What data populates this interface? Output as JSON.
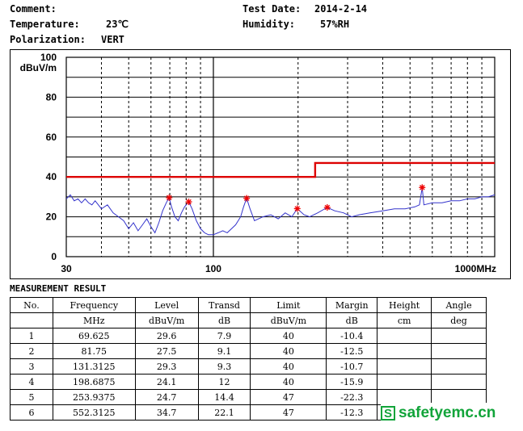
{
  "header": {
    "comment_label": "Comment:",
    "temperature_label": "Temperature:",
    "temperature_value": "23℃",
    "polarization_label": "Polarization:",
    "polarization_value": "VERT",
    "test_date_label": "Test Date:",
    "test_date_value": "2014-2-14",
    "humidity_label": "Humidity:",
    "humidity_value": "57%RH"
  },
  "chart_data": {
    "type": "line",
    "x_scale": "log",
    "xlim": [
      30,
      1000
    ],
    "ylim": [
      0,
      100
    ],
    "y_unit": "dBuV/m",
    "x_unit": "MHz",
    "y_tick_labels": [
      "100",
      "80",
      "60",
      "40",
      "20",
      "0"
    ],
    "y_tick_values": [
      100,
      80,
      60,
      40,
      20,
      0
    ],
    "x_tick_labels": [
      "30",
      "100",
      "1000MHz"
    ],
    "x_tick_values": [
      30,
      100,
      1000
    ],
    "grid": true,
    "colors": {
      "trace": "#3333cc",
      "limit": "#dd0000",
      "marker": "#ee0000",
      "grid": "#000000"
    },
    "limit_line": {
      "x": [
        30,
        230,
        230,
        1000
      ],
      "y": [
        40,
        40,
        47,
        47
      ]
    },
    "trace": {
      "x": [
        30,
        31,
        32,
        33,
        34,
        35,
        36,
        37,
        38,
        40,
        42,
        44,
        46,
        48,
        50,
        52,
        54,
        56,
        58,
        60,
        62,
        64,
        66,
        68,
        69.6,
        71,
        73,
        75,
        77,
        79,
        81.75,
        84,
        87,
        90,
        93,
        96,
        100,
        104,
        108,
        112,
        116,
        120,
        125,
        128,
        131.3,
        135,
        140,
        150,
        160,
        170,
        180,
        190,
        198.7,
        210,
        220,
        235,
        253.9,
        270,
        290,
        310,
        330,
        360,
        400,
        440,
        480,
        520,
        540,
        552.3,
        560,
        600,
        650,
        700,
        750,
        800,
        850,
        900,
        950,
        1000
      ],
      "y": [
        29,
        31,
        28,
        29,
        27,
        29,
        27,
        26,
        28,
        24,
        26,
        22,
        20,
        18,
        14,
        17,
        13,
        16,
        19,
        15,
        12,
        17,
        23,
        27,
        29.6,
        25,
        20,
        18,
        22,
        25,
        27.5,
        24,
        18,
        14,
        12,
        11,
        11,
        12,
        13,
        12,
        14,
        16,
        20,
        25,
        29.3,
        24,
        18,
        20,
        21,
        19,
        22,
        20,
        24.1,
        21,
        20,
        22,
        24.7,
        23,
        22,
        20,
        21,
        22,
        23,
        24,
        24,
        25,
        26,
        34.7,
        26,
        27,
        27,
        28,
        28,
        29,
        29,
        30,
        30,
        31
      ]
    },
    "markers": {
      "x": [
        69.625,
        81.75,
        131.3125,
        198.6875,
        253.9375,
        552.3125
      ],
      "y": [
        29.6,
        27.5,
        29.3,
        24.1,
        24.7,
        34.7
      ]
    }
  },
  "measurement": {
    "title": "MEASUREMENT RESULT",
    "columns": [
      "No.",
      "Frequency",
      "Level",
      "Transd",
      "Limit",
      "Margin",
      "Height",
      "Angle"
    ],
    "units": [
      "",
      "MHz",
      "dBuV/m",
      "dB",
      "dBuV/m",
      "dB",
      "cm",
      "deg"
    ],
    "rows": [
      [
        "1",
        "69.625",
        "29.6",
        "7.9",
        "40",
        "-10.4",
        "",
        ""
      ],
      [
        "2",
        "81.75",
        "27.5",
        "9.1",
        "40",
        "-12.5",
        "",
        ""
      ],
      [
        "3",
        "131.3125",
        "29.3",
        "9.3",
        "40",
        "-10.7",
        "",
        ""
      ],
      [
        "4",
        "198.6875",
        "24.1",
        "12",
        "40",
        "-15.9",
        "",
        ""
      ],
      [
        "5",
        "253.9375",
        "24.7",
        "14.4",
        "47",
        "-22.3",
        "",
        ""
      ],
      [
        "6",
        "552.3125",
        "34.7",
        "22.1",
        "47",
        "-12.3",
        "",
        ""
      ]
    ]
  },
  "watermark": {
    "badge_letter": "S",
    "text": "safetyemc.cn"
  }
}
